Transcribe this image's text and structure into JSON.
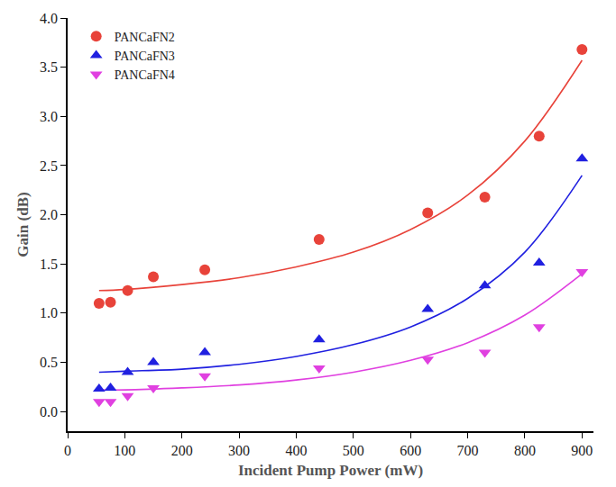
{
  "chart_data": {
    "type": "scatter",
    "x_label": "Incident Pump Power (mW)",
    "y_label": "Gain (dB)",
    "xlim": [
      0,
      920
    ],
    "xticks": [
      0,
      100,
      200,
      300,
      400,
      500,
      600,
      700,
      800,
      900
    ],
    "ylim": [
      -0.2,
      4.0
    ],
    "yticks": [
      {
        "value": 0,
        "label": "0.0"
      },
      {
        "value": 0.5,
        "label": "0.5"
      },
      {
        "value": 1,
        "label": "1.0"
      },
      {
        "value": 1.5,
        "label": "1.5"
      },
      {
        "value": 2,
        "label": "2.0"
      },
      {
        "value": 2.5,
        "label": "2.5"
      },
      {
        "value": 3,
        "label": "3.0"
      },
      {
        "value": 3.5,
        "label": "3.5"
      },
      {
        "value": 4,
        "label": "4.0"
      }
    ],
    "grid": false,
    "legend": "top-left",
    "series": [
      {
        "name": "PANCaFN2",
        "color": "#e8433a",
        "marker": "circle",
        "x": [
          55,
          75,
          105,
          150,
          240,
          440,
          630,
          730,
          825,
          900
        ],
        "values": [
          1.1,
          1.11,
          1.23,
          1.37,
          1.44,
          1.75,
          2.02,
          2.18,
          2.8,
          3.68
        ],
        "fit": {
          "x": [
            55,
            100,
            200,
            300,
            400,
            500,
            600,
            700,
            800,
            900
          ],
          "values": [
            1.23,
            1.24,
            1.29,
            1.36,
            1.47,
            1.62,
            1.85,
            2.2,
            2.75,
            3.57
          ]
        }
      },
      {
        "name": "PANCaFN3",
        "color": "#2020e0",
        "marker": "triangle-up",
        "x": [
          55,
          75,
          105,
          150,
          240,
          440,
          630,
          730,
          825,
          900
        ],
        "values": [
          0.23,
          0.24,
          0.4,
          0.5,
          0.6,
          0.73,
          1.04,
          1.28,
          1.51,
          2.57
        ],
        "fit": {
          "x": [
            55,
            100,
            200,
            300,
            400,
            500,
            600,
            700,
            800,
            900
          ],
          "values": [
            0.4,
            0.41,
            0.43,
            0.48,
            0.56,
            0.68,
            0.86,
            1.15,
            1.62,
            2.4
          ]
        }
      },
      {
        "name": "PANCaFN4",
        "color": "#e040e0",
        "marker": "triangle-down",
        "x": [
          55,
          75,
          105,
          150,
          240,
          440,
          630,
          730,
          825,
          900
        ],
        "values": [
          0.1,
          0.1,
          0.16,
          0.24,
          0.36,
          0.44,
          0.53,
          0.6,
          0.86,
          1.42
        ],
        "fit": {
          "x": [
            55,
            100,
            200,
            300,
            400,
            500,
            600,
            700,
            800,
            900
          ],
          "values": [
            0.22,
            0.22,
            0.24,
            0.27,
            0.32,
            0.4,
            0.52,
            0.7,
            0.98,
            1.4
          ]
        }
      }
    ]
  }
}
